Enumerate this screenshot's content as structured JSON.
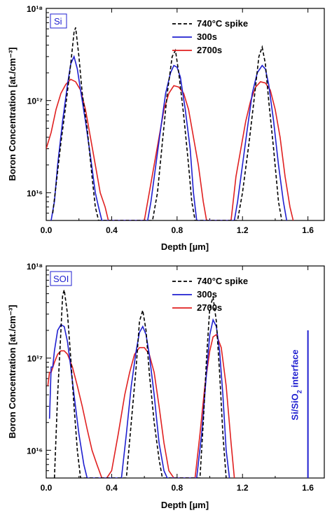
{
  "chart_data": [
    {
      "type": "line",
      "tag": "Si",
      "xlabel": "Depth [µm]",
      "ylabel": "Boron Concentration [at./cm⁻³]",
      "xlim": [
        0.0,
        1.7
      ],
      "ylim": [
        5000000000000000.0,
        1e+18
      ],
      "yscale": "log",
      "xticks": [
        0.0,
        0.4,
        0.8,
        1.2,
        1.6
      ],
      "xtick_labels": [
        "0.0",
        "0.4",
        "0.8",
        "1.2",
        "1.6"
      ],
      "yticks": [
        1e+16,
        1e+17,
        1e+18
      ],
      "ytick_labels": [
        "10¹⁶",
        "10¹⁷",
        "10¹⁸"
      ],
      "legend_position": "top-right",
      "series": [
        {
          "name": "740°C spike",
          "color": "#000000",
          "dash": true,
          "x": [
            0.04,
            0.06,
            0.09,
            0.12,
            0.15,
            0.17,
            0.18,
            0.2,
            0.22,
            0.25,
            0.28,
            0.3,
            0.32,
            0.65,
            0.68,
            0.71,
            0.74,
            0.77,
            0.79,
            0.81,
            0.84,
            0.87,
            0.89,
            0.91,
            1.17,
            1.2,
            1.24,
            1.27,
            1.3,
            1.32,
            1.34,
            1.36,
            1.39,
            1.42,
            1.44
          ],
          "y": [
            6000000000000000.0,
            1.2e+16,
            3.5e+16,
            9e+16,
            2.5e+17,
            5.5e+17,
            6.2e+17,
            3e+17,
            1.2e+17,
            5e+16,
            1.5e+16,
            7000000000000000.0,
            5000000000000000.0,
            5000000000000000.0,
            1e+16,
            3.5e+16,
            1.2e+17,
            3e+17,
            3.5e+17,
            2e+17,
            7e+16,
            2e+16,
            8000000000000000.0,
            5000000000000000.0,
            5000000000000000.0,
            1e+16,
            3.5e+16,
            1e+17,
            3e+17,
            3.8e+17,
            2.5e+17,
            1e+17,
            3e+16,
            8000000000000000.0,
            5000000000000000.0
          ]
        },
        {
          "name": "300s",
          "color": "#1f1fd0",
          "dash": false,
          "x": [
            0.03,
            0.05,
            0.07,
            0.1,
            0.13,
            0.15,
            0.17,
            0.19,
            0.21,
            0.24,
            0.27,
            0.3,
            0.32,
            0.34,
            0.62,
            0.64,
            0.67,
            0.7,
            0.73,
            0.76,
            0.78,
            0.8,
            0.82,
            0.85,
            0.88,
            0.9,
            0.92,
            1.15,
            1.17,
            1.2,
            1.23,
            1.26,
            1.29,
            1.32,
            1.34,
            1.36,
            1.39,
            1.42,
            1.45,
            1.47
          ],
          "y": [
            5000000000000000.0,
            8000000000000000.0,
            2e+16,
            6e+16,
            1.5e+17,
            2.5e+17,
            3e+17,
            2.2e+17,
            1.3e+17,
            6e+16,
            2.5e+16,
            1e+16,
            7000000000000000.0,
            5000000000000000.0,
            5000000000000000.0,
            8000000000000000.0,
            2e+16,
            5e+16,
            1.2e+17,
            2e+17,
            2.4e+17,
            2.3e+17,
            1.8e+17,
            8e+16,
            3e+16,
            1e+16,
            5000000000000000.0,
            5000000000000000.0,
            8000000000000000.0,
            2e+16,
            5e+16,
            1.2e+17,
            2e+17,
            2.4e+17,
            2.2e+17,
            1.5e+17,
            6e+16,
            2e+16,
            8000000000000000.0,
            5000000000000000.0
          ]
        },
        {
          "name": "2700s",
          "color": "#e02020",
          "dash": false,
          "x": [
            0.0,
            0.03,
            0.06,
            0.09,
            0.12,
            0.15,
            0.18,
            0.21,
            0.24,
            0.27,
            0.3,
            0.33,
            0.36,
            0.38,
            0.6,
            0.63,
            0.66,
            0.69,
            0.72,
            0.75,
            0.78,
            0.81,
            0.84,
            0.87,
            0.9,
            0.93,
            0.96,
            0.98,
            1.13,
            1.16,
            1.19,
            1.22,
            1.25,
            1.28,
            1.31,
            1.34,
            1.37,
            1.4,
            1.43,
            1.46,
            1.49,
            1.51
          ],
          "y": [
            3e+16,
            4.5e+16,
            8e+16,
            1.2e+17,
            1.5e+17,
            1.7e+17,
            1.6e+17,
            1.3e+17,
            8e+16,
            4e+16,
            2e+16,
            1e+16,
            7000000000000000.0,
            5000000000000000.0,
            5000000000000000.0,
            1e+16,
            2e+16,
            4e+16,
            8e+16,
            1.2e+17,
            1.45e+17,
            1.4e+17,
            1.2e+17,
            8e+16,
            4e+16,
            2e+16,
            8000000000000000.0,
            5000000000000000.0,
            5000000000000000.0,
            1.5e+16,
            3e+16,
            6e+16,
            1e+17,
            1.4e+17,
            1.6e+17,
            1.55e+17,
            1.3e+17,
            8e+16,
            4e+16,
            1.5e+16,
            7000000000000000.0,
            5000000000000000.0
          ]
        }
      ]
    },
    {
      "type": "line",
      "tag": "SOI",
      "xlabel": "Depth [µm]",
      "ylabel": "Boron Concentration [at./cm⁻³]",
      "xlim": [
        0.0,
        1.7
      ],
      "ylim": [
        5000000000000000.0,
        1e+18
      ],
      "yscale": "log",
      "xticks": [
        0.0,
        0.4,
        0.8,
        1.2,
        1.6
      ],
      "xtick_labels": [
        "0.0",
        "0.4",
        "0.8",
        "1.2",
        "1.6"
      ],
      "yticks": [
        1e+16,
        1e+17,
        1e+18
      ],
      "ytick_labels": [
        "10¹⁶",
        "10¹⁷",
        "10¹⁸"
      ],
      "legend_position": "top-right",
      "annotation": {
        "text_main": "Si/SiO",
        "text_sub": "2",
        "text_tail": " interface",
        "x": 1.6,
        "y_range": [
          5000000000000000.0,
          2e+17
        ],
        "color": "#1f1fd0"
      },
      "series": [
        {
          "name": "740°C spike",
          "color": "#000000",
          "dash": true,
          "x": [
            0.05,
            0.07,
            0.09,
            0.1,
            0.11,
            0.13,
            0.15,
            0.17,
            0.19,
            0.21,
            0.49,
            0.52,
            0.55,
            0.57,
            0.59,
            0.61,
            0.63,
            0.66,
            0.69,
            0.71,
            0.94,
            0.96,
            0.98,
            1.0,
            1.02,
            1.04,
            1.06,
            1.08,
            1.1
          ],
          "y": [
            5000000000000000.0,
            4e+16,
            2e+17,
            4.8e+17,
            5.5e+17,
            3e+17,
            1e+17,
            3e+16,
            1e+16,
            5000000000000000.0,
            5000000000000000.0,
            2e+16,
            8e+16,
            2.5e+17,
            3.3e+17,
            2e+17,
            7e+16,
            2e+16,
            8000000000000000.0,
            5000000000000000.0,
            5000000000000000.0,
            2e+16,
            1e+17,
            3.5e+17,
            4.6e+17,
            2.5e+17,
            7e+16,
            1.5e+16,
            5000000000000000.0
          ]
        },
        {
          "name": "300s",
          "color": "#1f1fd0",
          "dash": false,
          "x": [
            0.02,
            0.03,
            0.04,
            0.05,
            0.07,
            0.09,
            0.11,
            0.13,
            0.15,
            0.17,
            0.2,
            0.23,
            0.25,
            0.46,
            0.49,
            0.52,
            0.55,
            0.57,
            0.59,
            0.61,
            0.63,
            0.66,
            0.69,
            0.72,
            0.74,
            0.92,
            0.95,
            0.98,
            1.0,
            1.02,
            1.04,
            1.06,
            1.08,
            1.1,
            1.12
          ],
          "y": [
            2.2e+16,
            8e+16,
            8e+16,
            1.2e+17,
            2e+17,
            2.3e+17,
            2.2e+17,
            1.5e+17,
            8e+16,
            4e+16,
            1.5e+16,
            7000000000000000.0,
            5000000000000000.0,
            5000000000000000.0,
            1.5e+16,
            5e+16,
            1.2e+17,
            1.9e+17,
            2.2e+17,
            1.8e+17,
            1.1e+17,
            4e+16,
            1.2e+16,
            6000000000000000.0,
            5000000000000000.0,
            5000000000000000.0,
            1.5e+16,
            7e+16,
            1.8e+17,
            2.6e+17,
            2.2e+17,
            1.2e+17,
            4e+16,
            1e+16,
            5000000000000000.0
          ]
        },
        {
          "name": "2700s",
          "color": "#e02020",
          "dash": false,
          "x": [
            0.01,
            0.02,
            0.03,
            0.05,
            0.07,
            0.09,
            0.11,
            0.13,
            0.16,
            0.19,
            0.22,
            0.25,
            0.28,
            0.31,
            0.34,
            0.37,
            0.4,
            0.44,
            0.48,
            0.51,
            0.54,
            0.57,
            0.6,
            0.63,
            0.66,
            0.69,
            0.72,
            0.75,
            0.78,
            0.91,
            0.94,
            0.97,
            1.0,
            1.02,
            1.04,
            1.07,
            1.1,
            1.13,
            1.15
          ],
          "y": [
            5e+16,
            7e+16,
            7e+16,
            9e+16,
            1.1e+17,
            1.2e+17,
            1.2e+17,
            1.1e+17,
            8e+16,
            5e+16,
            3e+16,
            1.7e+16,
            1e+16,
            7000000000000000.0,
            5000000000000000.0,
            5000000000000000.0,
            6000000000000000.0,
            1.5e+16,
            4e+16,
            7e+16,
            1.1e+17,
            1.3e+17,
            1.3e+17,
            1.1e+17,
            7e+16,
            3e+16,
            1.2e+16,
            6000000000000000.0,
            5000000000000000.0,
            5000000000000000.0,
            1.5e+16,
            5e+16,
            1.2e+17,
            1.7e+17,
            1.8e+17,
            1.3e+17,
            5e+16,
            1.2e+16,
            5000000000000000.0
          ]
        }
      ]
    }
  ]
}
